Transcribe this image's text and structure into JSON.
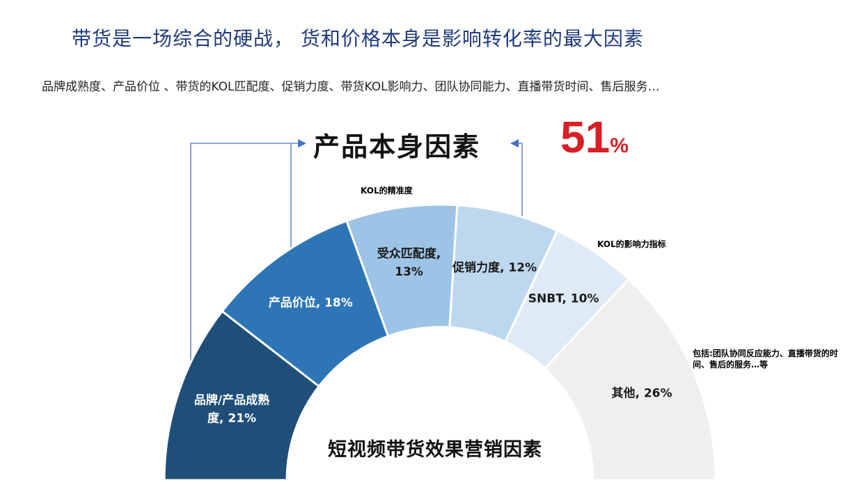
{
  "page": {
    "title": "带货是一场综合的硬战， 货和价格本身是影响转化率的最大因素",
    "subtitle": "品牌成熟度、产品价位 、带货的KOL匹配度、促销力度、带货KOL影响力、团队协同能力、直播带货时间、售后服务…",
    "headline": "产品本身因素",
    "headline_value": "51",
    "headline_unit": "%",
    "notes": {
      "kol_precision": "KOL的精准度",
      "kol_influence": "KOL的影响力指标",
      "others": "包括:团队协同反应能力、直播带货的时间、售后的服务…等"
    }
  },
  "chart_data": {
    "type": "pie",
    "shape": "semi-donut",
    "title": "短视频带货效果营销因素",
    "slices": [
      {
        "label_lines": [
          "品牌/产品成熟",
          "度, 21%"
        ],
        "value": 21,
        "color": "#1f4e79",
        "text_color": "#ffffff"
      },
      {
        "label_lines": [
          "产品价位, 18%"
        ],
        "value": 18,
        "color": "#2e75b6",
        "text_color": "#ffffff"
      },
      {
        "label_lines": [
          "受众匹配度,",
          "13%"
        ],
        "value": 13,
        "color": "#9dc3e6",
        "text_color": "#1a1a1a"
      },
      {
        "label_lines": [
          "促销力度, 12%"
        ],
        "value": 12,
        "color": "#bdd7ee",
        "text_color": "#1a1a1a"
      },
      {
        "label_lines": [
          "SNBT, 10%"
        ],
        "value": 10,
        "color": "#deebf7",
        "text_color": "#1a1a1a"
      },
      {
        "label_lines": [
          "其他, 26%"
        ],
        "value": 26,
        "color": "#efefef",
        "text_color": "#1a1a1a"
      }
    ],
    "accent_color": "#d61f26",
    "bracket_color": "#4472c4"
  }
}
